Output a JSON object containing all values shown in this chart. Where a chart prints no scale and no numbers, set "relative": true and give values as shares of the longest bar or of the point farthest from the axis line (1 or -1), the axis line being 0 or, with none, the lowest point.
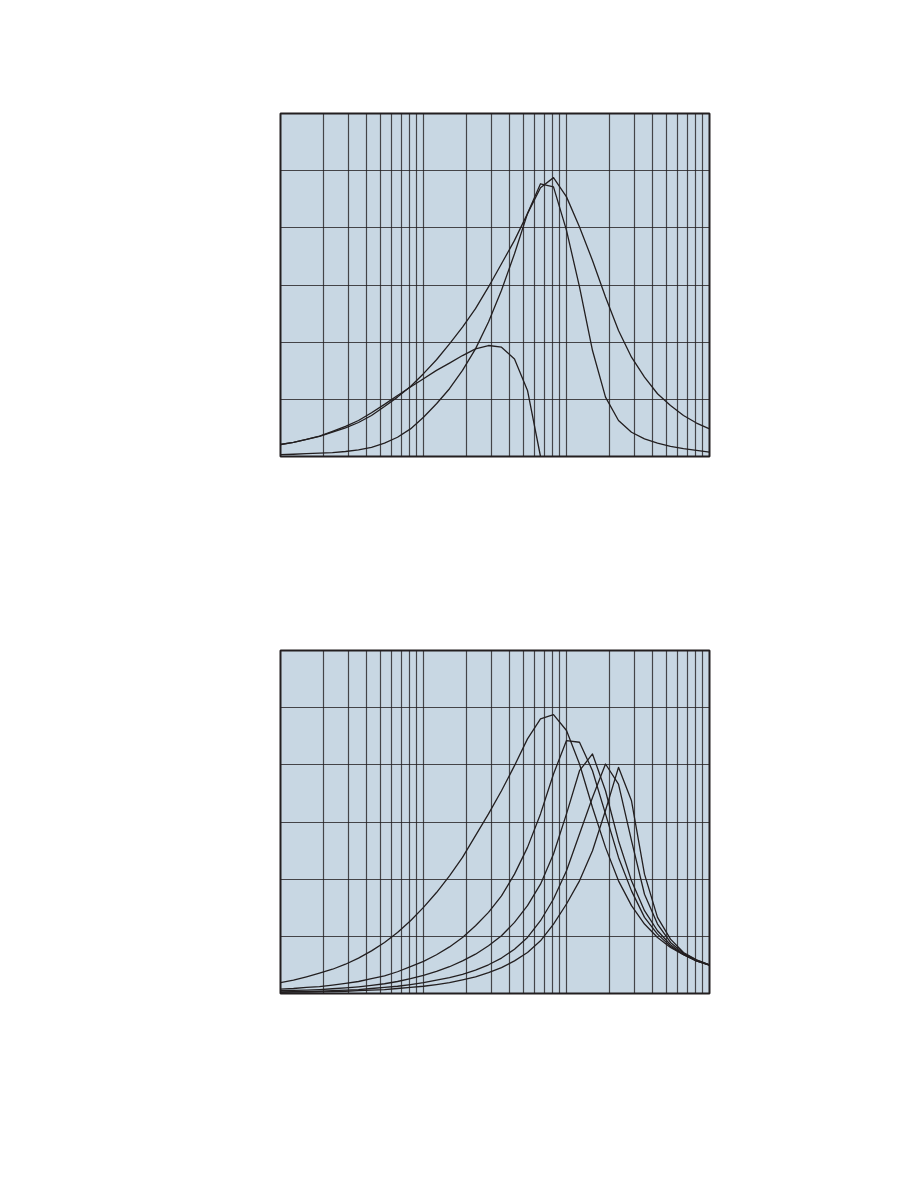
{
  "chart_data": [
    {
      "type": "line",
      "relative": true,
      "grid": true,
      "categories": [
        null,
        null,
        null,
        null,
        null,
        null,
        null,
        null,
        null,
        null,
        null,
        null,
        null,
        null,
        null,
        null,
        null,
        null,
        null,
        null,
        null,
        null,
        null,
        null,
        null,
        null,
        null,
        null,
        null,
        null,
        null,
        null,
        null,
        null
      ],
      "series": [
        {
          "color": "#231f20",
          "values": [
            0.043,
            0.051,
            0.061,
            0.072,
            0.087,
            0.103,
            0.122,
            0.147,
            0.179,
            0.213,
            0.251,
            0.297,
            0.347,
            0.404,
            0.464,
            0.53,
            0.608,
            0.691,
            0.775,
            0.871,
            0.964,
            1.0,
            0.931,
            0.823,
            0.703,
            0.572,
            0.452,
            0.356,
            0.285,
            0.225,
            0.183,
            0.147,
            0.12,
            0.099
          ]
        },
        {
          "color": "#231f20",
          "values": [
            0.007,
            0.008,
            0.01,
            0.012,
            0.014,
            0.018,
            0.024,
            0.033,
            0.048,
            0.069,
            0.099,
            0.141,
            0.189,
            0.243,
            0.309,
            0.386,
            0.482,
            0.596,
            0.727,
            0.871,
            0.978,
            0.967,
            0.811,
            0.608,
            0.38,
            0.213,
            0.129,
            0.087,
            0.063,
            0.048,
            0.036,
            0.028,
            0.022,
            0.016
          ]
        },
        {
          "color": "#231f20",
          "values": [
            0.043,
            0.051,
            0.061,
            0.073,
            0.09,
            0.108,
            0.129,
            0.157,
            0.187,
            0.219,
            0.249,
            0.279,
            0.309,
            0.335,
            0.362,
            0.386,
            0.398,
            0.392,
            0.35,
            0.237,
            0.0,
            null,
            null,
            null,
            null,
            null,
            null,
            null,
            null,
            null,
            null,
            null,
            null,
            null
          ]
        }
      ]
    },
    {
      "type": "line",
      "relative": true,
      "grid": true,
      "categories": [
        null,
        null,
        null,
        null,
        null,
        null,
        null,
        null,
        null,
        null,
        null,
        null,
        null,
        null,
        null,
        null,
        null,
        null,
        null,
        null,
        null,
        null,
        null,
        null,
        null,
        null,
        null,
        null,
        null,
        null,
        null,
        null,
        null,
        null
      ],
      "series": [
        {
          "color": "#231f20",
          "values": [
            0.039,
            0.048,
            0.06,
            0.073,
            0.087,
            0.105,
            0.127,
            0.153,
            0.183,
            0.219,
            0.261,
            0.309,
            0.362,
            0.422,
            0.488,
            0.566,
            0.644,
            0.727,
            0.817,
            0.913,
            0.985,
            1.0,
            0.943,
            0.823,
            0.667,
            0.524,
            0.404,
            0.315,
            0.249,
            0.201,
            0.165,
            0.139,
            0.117,
            0.102
          ]
        },
        {
          "color": "#231f20",
          "values": [
            0.016,
            0.018,
            0.022,
            0.025,
            0.03,
            0.036,
            0.043,
            0.053,
            0.063,
            0.078,
            0.096,
            0.115,
            0.139,
            0.167,
            0.201,
            0.243,
            0.291,
            0.35,
            0.428,
            0.524,
            0.644,
            0.787,
            0.907,
            0.901,
            0.799,
            0.644,
            0.488,
            0.368,
            0.273,
            0.213,
            0.169,
            0.139,
            0.117,
            0.102
          ]
        },
        {
          "color": "#231f20",
          "values": [
            0.01,
            0.011,
            0.012,
            0.014,
            0.017,
            0.02,
            0.024,
            0.029,
            0.035,
            0.043,
            0.053,
            0.065,
            0.079,
            0.096,
            0.117,
            0.141,
            0.171,
            0.207,
            0.255,
            0.315,
            0.392,
            0.5,
            0.644,
            0.799,
            0.859,
            0.727,
            0.548,
            0.404,
            0.297,
            0.225,
            0.175,
            0.141,
            0.117,
            0.102
          ]
        },
        {
          "color": "#231f20",
          "values": [
            0.006,
            0.007,
            0.007,
            0.008,
            0.01,
            0.012,
            0.014,
            0.018,
            0.022,
            0.026,
            0.032,
            0.039,
            0.048,
            0.057,
            0.069,
            0.084,
            0.103,
            0.127,
            0.159,
            0.201,
            0.261,
            0.339,
            0.44,
            0.572,
            0.703,
            0.823,
            0.751,
            0.548,
            0.356,
            0.249,
            0.183,
            0.144,
            0.12,
            0.103
          ]
        },
        {
          "color": "#231f20",
          "values": [
            0.004,
            0.005,
            0.005,
            0.006,
            0.007,
            0.008,
            0.01,
            0.012,
            0.014,
            0.018,
            0.022,
            0.026,
            0.032,
            0.039,
            0.049,
            0.06,
            0.075,
            0.093,
            0.117,
            0.147,
            0.189,
            0.249,
            0.321,
            0.404,
            0.512,
            0.656,
            0.811,
            0.691,
            0.428,
            0.273,
            0.195,
            0.147,
            0.121,
            0.103
          ]
        }
      ]
    }
  ]
}
